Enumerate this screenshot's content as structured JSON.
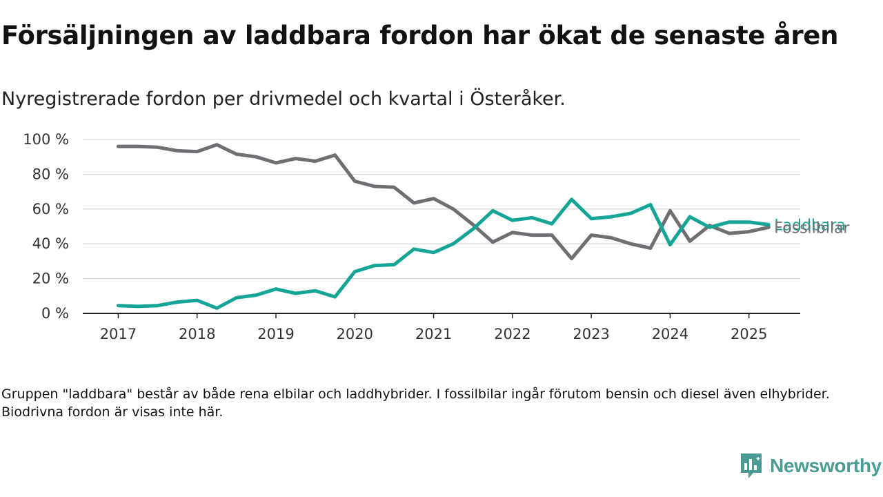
{
  "title": "Försäljningen av laddbara fordon har ökat de senaste åren",
  "subtitle": "Nyregistrerade fordon per drivmedel och kvartal i Österåker.",
  "footnote": "Gruppen \"laddbara\" består av både rena elbilar och laddhybrider. I fossilbilar ingår förutom bensin och diesel även elhybrider. Biodrivna fordon är visas inte här.",
  "brand": {
    "name": "Newsworthy",
    "color": "#4a9b94"
  },
  "chart_data": {
    "type": "line",
    "x": [
      2017,
      2017.25,
      2017.5,
      2017.75,
      2018,
      2018.25,
      2018.5,
      2018.75,
      2019,
      2019.25,
      2019.5,
      2019.75,
      2020,
      2020.25,
      2020.5,
      2020.75,
      2021,
      2021.25,
      2021.5,
      2021.75,
      2022,
      2022.25,
      2022.5,
      2022.75,
      2023,
      2023.25,
      2023.5,
      2023.75,
      2024,
      2024.25,
      2024.5,
      2024.75,
      2025,
      2025.25
    ],
    "xticks": [
      2017,
      2018,
      2019,
      2020,
      2021,
      2022,
      2023,
      2024,
      2025
    ],
    "xtick_labels": [
      "2017",
      "2018",
      "2019",
      "2020",
      "2021",
      "2022",
      "2023",
      "2024",
      "2025"
    ],
    "yticks": [
      0,
      20,
      40,
      60,
      80,
      100
    ],
    "ytick_labels": [
      "0 %",
      "20 %",
      "40 %",
      "60 %",
      "80 %",
      "100 %"
    ],
    "ylim": [
      0,
      100
    ],
    "xlim": [
      2016.55,
      2025.65
    ],
    "grid": true,
    "series": [
      {
        "name": "Fossilbilar",
        "color": "#6e6e73",
        "values": [
          96,
          96,
          95.5,
          93.5,
          93,
          97,
          91.5,
          90,
          86.5,
          89,
          87.5,
          91,
          76,
          73,
          72.5,
          63.5,
          66,
          60,
          51,
          41,
          46.5,
          45,
          45,
          31.5,
          45,
          43.5,
          40,
          37.5,
          59,
          41.5,
          50.5,
          46,
          47,
          49.5
        ]
      },
      {
        "name": "Laddbara",
        "color": "#15a597",
        "values": [
          4.5,
          4,
          4.5,
          6.5,
          7.5,
          3,
          9,
          10.5,
          14,
          11.5,
          13,
          9.5,
          24,
          27.5,
          28,
          37,
          35,
          40,
          48.5,
          59,
          53.5,
          55,
          51.5,
          65.5,
          54.5,
          55.5,
          57.5,
          62.5,
          39.5,
          55.5,
          49.5,
          52.5,
          52.5,
          51
        ]
      }
    ]
  }
}
